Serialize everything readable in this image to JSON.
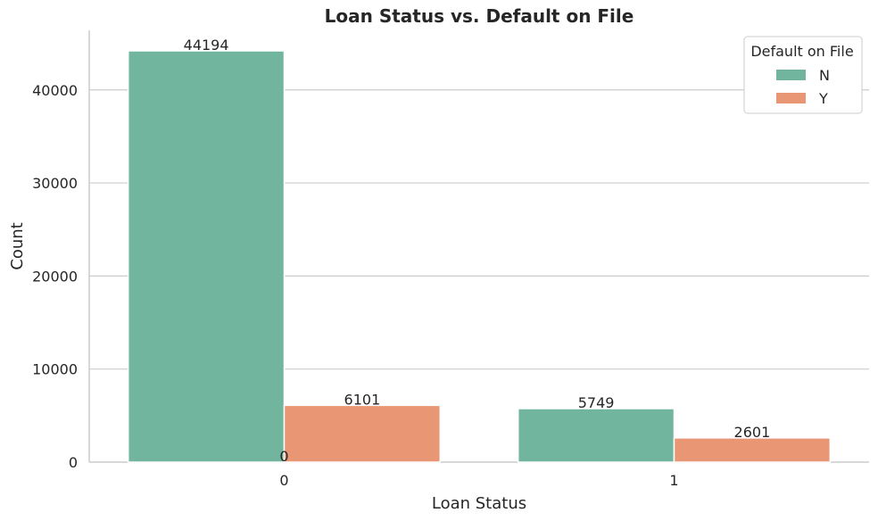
{
  "chart_data": {
    "type": "bar",
    "title": "Loan Status vs. Default on File",
    "xlabel": "Loan Status",
    "ylabel": "Count",
    "categories": [
      "0",
      "1"
    ],
    "series": [
      {
        "name": "N",
        "values": [
          44194,
          5749
        ],
        "color": "#72b59e"
      },
      {
        "name": "Y",
        "values": [
          6101,
          2601
        ],
        "color": "#e99674"
      }
    ],
    "data_labels": [
      {
        "text": "44194",
        "category": "0",
        "series": "N"
      },
      {
        "text": "6101",
        "category": "0",
        "series": "Y"
      },
      {
        "text": "5749",
        "category": "1",
        "series": "N"
      },
      {
        "text": "2601",
        "category": "1",
        "series": "Y"
      },
      {
        "text": "0",
        "category": "0",
        "series": ""
      }
    ],
    "yticks": [
      0,
      10000,
      20000,
      30000,
      40000
    ],
    "ytick_labels": [
      "0",
      "10000",
      "20000",
      "30000",
      "40000"
    ],
    "ylim": [
      0,
      46400
    ],
    "legend": {
      "title": "Default on File",
      "placement": "top-right"
    },
    "grid": "horizontal"
  }
}
